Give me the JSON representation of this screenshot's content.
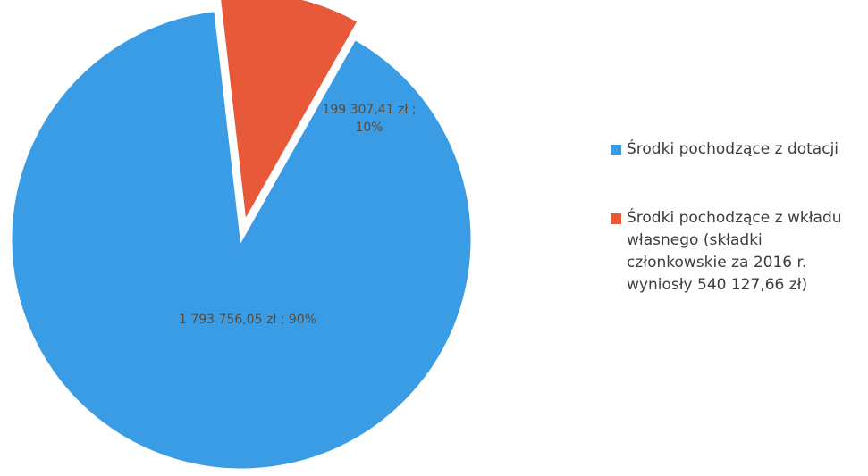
{
  "chart_data": {
    "type": "pie",
    "categories": [
      "Środki pochodzące z dotacji",
      "Środki pochodzące z wkładu własnego (składki członkowskie za 2016 r. wyniosły 540 127,66 zł)"
    ],
    "values": [
      1793756.05,
      199307.41
    ],
    "percentages": [
      90,
      10
    ],
    "colors": [
      "#3b9ce6",
      "#e8593a"
    ],
    "data_labels": [
      [
        "1 793 756,05 zł ; 90%"
      ],
      [
        "199 307,41 zł ;",
        "10%"
      ]
    ],
    "exploded_slice": 1,
    "legend_position": "right"
  }
}
